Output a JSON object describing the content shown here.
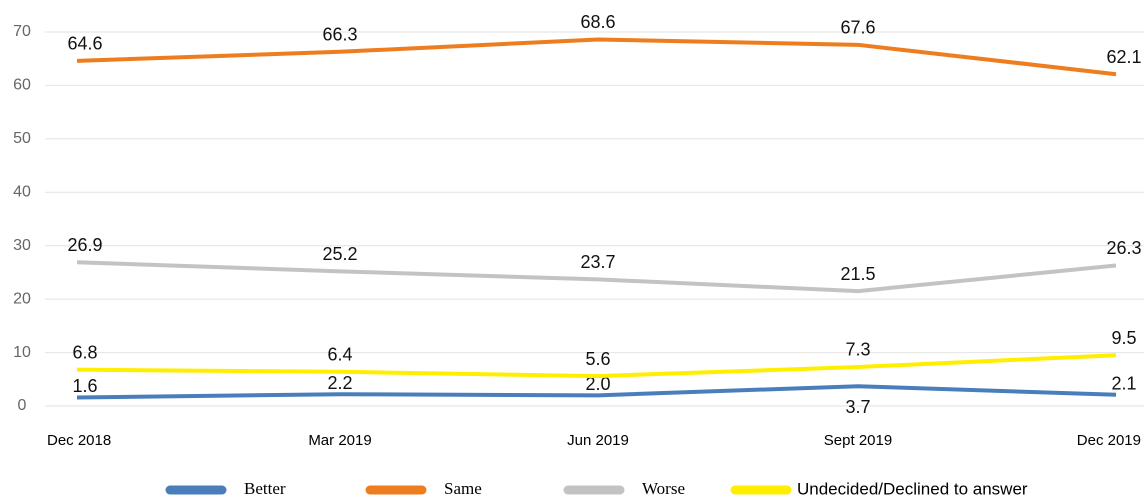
{
  "chart_data": {
    "type": "line",
    "categories": [
      "Dec 2018",
      "Mar 2019",
      "Jun 2019",
      "Sept 2019",
      "Dec 2019"
    ],
    "series": [
      {
        "name": "Better",
        "color": "#4a7ebb",
        "values": [
          1.6,
          2.2,
          2.0,
          3.7,
          2.1
        ],
        "value_labels": [
          "1.6",
          "2.2",
          "2.0",
          "3.7",
          "2.1"
        ]
      },
      {
        "name": "Same",
        "color": "#ed7d1f",
        "values": [
          64.6,
          66.3,
          68.6,
          67.6,
          62.1
        ],
        "value_labels": [
          "64.6",
          "66.3",
          "68.6",
          "67.6",
          "62.1"
        ]
      },
      {
        "name": "Worse",
        "color": "#c3c3c3",
        "values": [
          26.9,
          25.2,
          23.7,
          21.5,
          26.3
        ],
        "value_labels": [
          "26.9",
          "25.2",
          "23.7",
          "21.5",
          "26.3"
        ]
      },
      {
        "name": "Undecided/Declined to answer",
        "color": "#ffee00",
        "values": [
          6.8,
          6.4,
          5.6,
          7.3,
          9.5
        ],
        "value_labels": [
          "6.8",
          "6.4",
          "5.6",
          "7.3",
          "9.5"
        ]
      }
    ],
    "ylim": [
      0,
      70
    ],
    "yticks": [
      0,
      10,
      20,
      30,
      40,
      50,
      60,
      70
    ],
    "grid": true,
    "legend": "bottom"
  }
}
